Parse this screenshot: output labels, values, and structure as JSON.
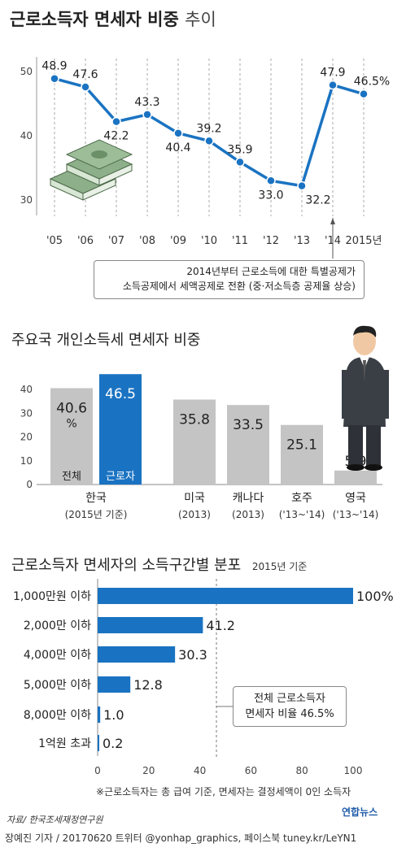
{
  "title": {
    "main": "근로소득자 면세자 비중",
    "suffix": "추이"
  },
  "callouts": {
    "line_note_1": "2014년부터 근로소득에 대한 특별공제가",
    "line_note_2": "소득공제에서 세액공제로 전환 (중·저소득층 공제율 상승)",
    "bar2_note_1": "전체 근로소득자",
    "bar2_note_2": "면세자 비율 46.5%"
  },
  "section2_title": "주요국 개인소득세 면세자 비중",
  "section3_title": "근로소득자 면세자의 소득구간별 분포",
  "section3_subtitle": "2015년 기준",
  "footnote": "※근로소득자는 총 급여 기준, 면세자는 결정세액이 0인 소득자",
  "source": "자료/ 한국조세재정연구원",
  "credit": "장예진 기자 / 20170620 트위터 @yonhap_graphics, 페이스북 tuney.kr/LeYN1",
  "logo": "연합뉴스",
  "colors": {
    "accent": "#1a73c2",
    "gray_bar": "#c4c4c4"
  },
  "icons": {
    "money": "money-stack-icon",
    "person": "businessman-icon"
  },
  "chart_data": [
    {
      "type": "line",
      "x": [
        "'05",
        "'06",
        "'07",
        "'08",
        "'09",
        "'10",
        "'11",
        "'12",
        "'13",
        "'14",
        "2015년"
      ],
      "values": [
        48.9,
        47.6,
        42.2,
        43.3,
        40.4,
        39.2,
        35.9,
        33.0,
        32.2,
        47.9,
        46.5
      ],
      "value_labels": [
        "48.9",
        "47.6",
        "42.2",
        "43.3",
        "40.4",
        "39.2",
        "35.9",
        "33.0",
        "32.2",
        "47.9",
        "46.5%"
      ],
      "yticks": [
        "50",
        "40",
        "30"
      ],
      "ylim": [
        30,
        52
      ],
      "grid": "vertical dashed"
    },
    {
      "type": "bar",
      "categories": [
        "한국",
        "미국",
        "캐나다",
        "호주",
        "영국"
      ],
      "category_sub": [
        "(2015년 기준)",
        "(2013)",
        "(2013)",
        "('13~'14)",
        "('13~'14)"
      ],
      "korea_series": [
        {
          "name": "전체",
          "value": 40.6,
          "label": "40.6",
          "unit": "%"
        },
        {
          "name": "근로자",
          "value": 46.5,
          "label": "46.5"
        }
      ],
      "others": [
        {
          "value": 35.8,
          "label": "35.8"
        },
        {
          "value": 33.5,
          "label": "33.5"
        },
        {
          "value": 25.1,
          "label": "25.1"
        },
        {
          "value": 5.9,
          "label": "5.9"
        }
      ],
      "yticks": [
        "0",
        "10",
        "20",
        "30",
        "40"
      ],
      "ylim": [
        0,
        50
      ]
    },
    {
      "type": "bar",
      "orientation": "horizontal",
      "categories": [
        "1,000만원 이하",
        "2,000만 이하",
        "4,000만 이하",
        "5,000만 이하",
        "8,000만 이하",
        "1억원 초과"
      ],
      "values": [
        100,
        41.2,
        30.3,
        12.8,
        1.0,
        0.2
      ],
      "value_labels": [
        "100%",
        "41.2",
        "30.3",
        "12.8",
        "1.0",
        "0.2"
      ],
      "xticks": [
        "0",
        "20",
        "40",
        "60",
        "80",
        "100"
      ],
      "xlim": [
        0,
        100
      ],
      "reference_line": 46.5
    }
  ]
}
